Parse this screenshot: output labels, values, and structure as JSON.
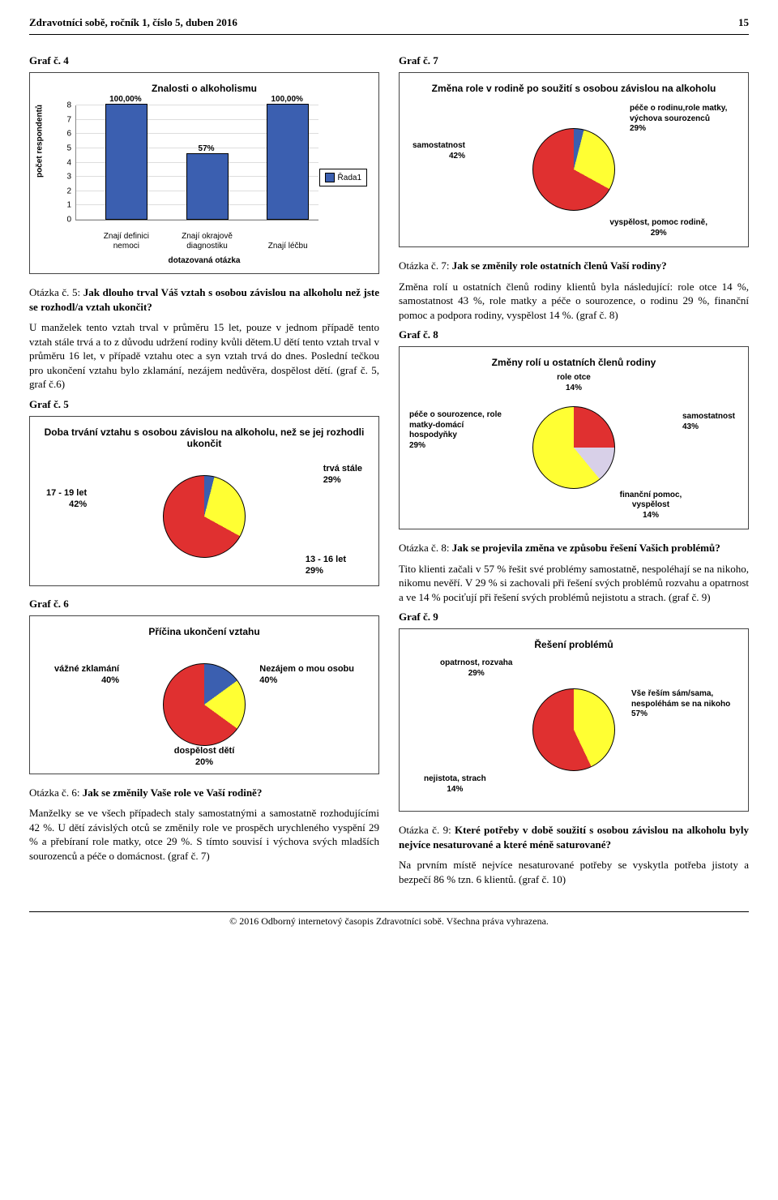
{
  "header": {
    "journal": "Zdravotníci sobě, ročník 1, číslo 5, duben 2016",
    "page": "15"
  },
  "graf4": {
    "heading": "Graf č. 4",
    "title": "Znalosti o alkoholismu",
    "ylabel": "počet respondentů",
    "xlabel": "dotazovaná otázka",
    "ymax": 8,
    "ytick_step": 1,
    "categories": [
      "Znají definici nemoci",
      "Znají okrajově diagnostiku",
      "Znají léčbu"
    ],
    "values_pct": [
      100,
      57,
      100
    ],
    "value_labels": [
      "100,00%",
      "57%",
      "100,00%"
    ],
    "bar_color": "#3b5fb0",
    "legend": "Řada1"
  },
  "otazka5_intro": "Otázka č. 5: ",
  "otazka5_bold": "Jak dlouho trval Váš vztah s osobou závislou na alkoholu než jste se rozhodl/a vztah ukončit?",
  "otazka5_body": "U manželek tento vztah trval v průměru 15 let, pouze v jednom případě tento vztah stále trvá a to z důvodu udržení rodiny kvůli dětem.U dětí tento vztah trval v průměru 16 let, v případě vztahu otec a syn vztah trvá do dnes. Poslední tečkou pro ukončení vztahu bylo zklamání, nezájem nedůvěra, dospělost dětí. (graf č. 5, graf č.6)",
  "graf5": {
    "heading": "Graf č. 5",
    "title": "Doba trvání vztahu s osobou závislou na alkoholu, než se jej rozhodli ukončit",
    "slices": [
      {
        "label": "trvá stále\n29%",
        "pct": 29,
        "color": "#3b5fb0"
      },
      {
        "label": "13 - 16 let\n29%",
        "pct": 29,
        "color": "#ffff33"
      },
      {
        "label": "17 - 19 let\n42%",
        "pct": 42,
        "color": "#e03030"
      }
    ]
  },
  "graf6": {
    "heading": "Graf č. 6",
    "title": "Příčina ukončení vztahu",
    "slices": [
      {
        "label": "Nezájem o mou osobu\n40%",
        "pct": 40,
        "color": "#3b5fb0"
      },
      {
        "label": "dospělost dětí\n20%",
        "pct": 20,
        "color": "#ffff33",
        "pattern": true
      },
      {
        "label": "vážné zklamání\n40%",
        "pct": 40,
        "color": "#e03030"
      }
    ]
  },
  "otazka6_intro": "Otázka č. 6: ",
  "otazka6_bold": "Jak se změnily Vaše role ve Vaší rodině?",
  "otazka6_body": "Manželky se ve všech případech staly samostatnými a samostatně rozhodujícími 42 %. U dětí závislých otců se změnily role ve prospěch urychleného vyspění 29 % a přebíraní role matky, otce 29 %. S tímto souvisí i výchova svých mladších sourozenců a péče o domácnost. (graf č. 7)",
  "graf7": {
    "heading": "Graf č. 7",
    "title": "Změna role v rodině po soužití s osobou závislou na alkoholu",
    "slices": [
      {
        "label": "péče o rodinu,role matky, výchova sourozenců\n29%",
        "pct": 29,
        "color": "#3b5fb0"
      },
      {
        "label": "vyspělost, pomoc rodině,\n29%",
        "pct": 29,
        "color": "#ffff33"
      },
      {
        "label": "samostatnost\n42%",
        "pct": 42,
        "color": "#e03030"
      }
    ]
  },
  "otazka7_intro": "Otázka č. 7: ",
  "otazka7_bold": "Jak se změnily role ostatních členů Vaší rodiny?",
  "otazka7_body": "Změna rolí u ostatních členů rodiny klientů byla následující: role otce 14 %, samostatnost 43 %, role matky a péče o sourozence, o rodinu 29 %, finanční pomoc a podpora rodiny, vyspělost 14 %. (graf č. 8)",
  "graf8": {
    "heading": "Graf č. 8",
    "title": "Změny rolí u ostatních členů rodiny",
    "slices": [
      {
        "label": "role otce\n14%",
        "pct": 14,
        "color": "#3b5fb0"
      },
      {
        "label": "samostatnost\n43%",
        "pct": 43,
        "color": "#e03030"
      },
      {
        "label": "finanční pomoc, vyspělost\n14%",
        "pct": 14,
        "color": "#d8d0e8"
      },
      {
        "label": "péče o sourozence, role matky-domácí hospodyňky\n29%",
        "pct": 29,
        "color": "#ffff33"
      }
    ]
  },
  "otazka8_intro": "Otázka č. 8: ",
  "otazka8_bold": "Jak se projevila změna ve způsobu řešení Vašich problémů?",
  "otazka8_body": "Tito klienti začali v 57 % řešit své problémy samostatně, nespoléhají se na nikoho, nikomu nevěří. V 29 % si zachovali při řešení svých problémů rozvahu a opatrnost a ve 14 % pociťují při řešení svých problémů nejistotu a strach. (graf č. 9)",
  "graf9": {
    "heading": "Graf č. 9",
    "title": "Řešení problémů",
    "slices": [
      {
        "label": "opatrnost, rozvaha\n29%",
        "pct": 29,
        "color": "#3b5fb0"
      },
      {
        "label": "Vše řeším sám/sama, nespoléhám se na nikoho\n57%",
        "pct": 57,
        "color": "#ffff33"
      },
      {
        "label": "nejistota, strach\n14%",
        "pct": 14,
        "color": "#e03030"
      }
    ]
  },
  "otazka9_intro": "Otázka č. 9: ",
  "otazka9_bold": "Které potřeby v době soužití s osobou závislou na alkoholu byly nejvíce nesaturované a které méně saturované?",
  "otazka9_body": "Na prvním místě nejvíce nesaturované potřeby se vyskytla potřeba jistoty a bezpečí 86 % tzn. 6 klientů. (graf č. 10)",
  "footer": "© 2016 Odborný internetový časopis Zdravotníci sobě. Všechna práva vyhrazena."
}
